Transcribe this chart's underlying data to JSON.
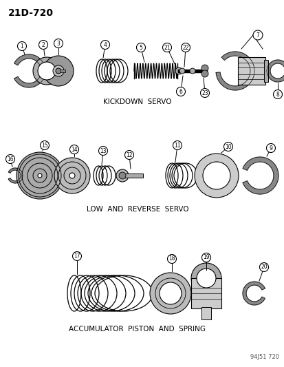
{
  "title_text": "21D-720",
  "section1_label": "KICKDOWN  SERVO",
  "section2_label": "LOW  AND  REVERSE  SERVO",
  "section3_label": "ACCUMULATOR  PISTON  AND  SPRING",
  "watermark": "94J51 720",
  "bg_color": "#ffffff",
  "line_color": "#000000"
}
